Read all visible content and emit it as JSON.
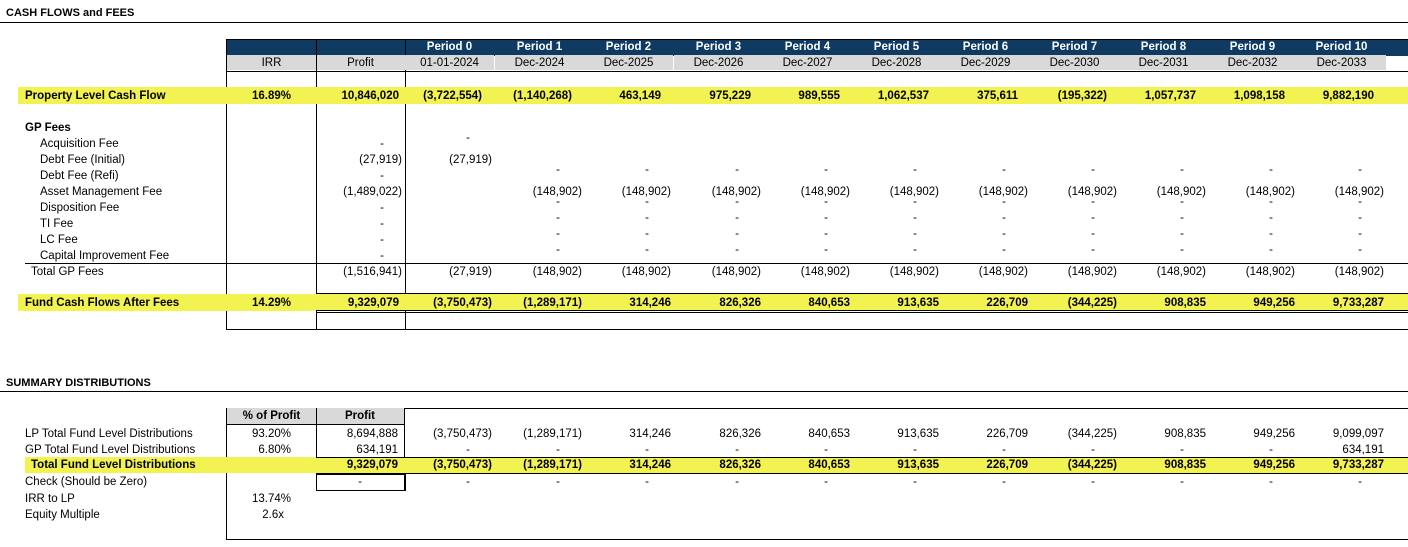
{
  "section1": {
    "title": "CASH FLOWS and FEES",
    "periods": [
      "Period 0",
      "Period 1",
      "Period 2",
      "Period 3",
      "Period 4",
      "Period 5",
      "Period 6",
      "Period 7",
      "Period 8",
      "Period 9",
      "Period 10"
    ],
    "dates": [
      "01-01-2024",
      "Dec-2024",
      "Dec-2025",
      "Dec-2026",
      "Dec-2027",
      "Dec-2028",
      "Dec-2029",
      "Dec-2030",
      "Dec-2031",
      "Dec-2032",
      "Dec-2033"
    ],
    "irr_header": "IRR",
    "profit_header": "Profit",
    "property_row": {
      "label": "Property Level Cash Flow",
      "irr": "16.89%",
      "profit": "10,846,020",
      "values": [
        "(3,722,554)",
        "(1,140,268)",
        "463,149",
        "975,229",
        "989,555",
        "1,062,537",
        "375,611",
        "(195,322)",
        "1,057,737",
        "1,098,158",
        "9,882,190"
      ]
    },
    "gp_fees_label": "GP Fees",
    "fees": [
      {
        "label": "Acquisition Fee",
        "profit": "-",
        "values": [
          "-",
          "",
          "",
          "",
          "",
          "",
          "",
          "",
          "",
          "",
          ""
        ]
      },
      {
        "label": "Debt Fee (Initial)",
        "profit": "(27,919)",
        "values": [
          "(27,919)",
          "",
          "",
          "",
          "",
          "",
          "",
          "",
          "",
          "",
          ""
        ]
      },
      {
        "label": "Debt Fee (Refi)",
        "profit": "-",
        "values": [
          "",
          "-",
          "-",
          "-",
          "-",
          "-",
          "-",
          "-",
          "-",
          "-",
          "-"
        ]
      },
      {
        "label": "Asset Management Fee",
        "profit": "(1,489,022)",
        "values": [
          "",
          "(148,902)",
          "(148,902)",
          "(148,902)",
          "(148,902)",
          "(148,902)",
          "(148,902)",
          "(148,902)",
          "(148,902)",
          "(148,902)",
          "(148,902)"
        ]
      },
      {
        "label": "Disposition Fee",
        "profit": "-",
        "values": [
          "",
          "-",
          "-",
          "-",
          "-",
          "-",
          "-",
          "-",
          "-",
          "-",
          "-"
        ]
      },
      {
        "label": "TI Fee",
        "profit": "-",
        "values": [
          "",
          "-",
          "-",
          "-",
          "-",
          "-",
          "-",
          "-",
          "-",
          "-",
          "-"
        ]
      },
      {
        "label": "LC Fee",
        "profit": "-",
        "values": [
          "",
          "-",
          "-",
          "-",
          "-",
          "-",
          "-",
          "-",
          "-",
          "-",
          "-"
        ]
      },
      {
        "label": "Capital Improvement Fee",
        "profit": "-",
        "values": [
          "",
          "-",
          "-",
          "-",
          "-",
          "-",
          "-",
          "-",
          "-",
          "-",
          "-"
        ]
      }
    ],
    "total_fees": {
      "label": "Total GP Fees",
      "profit": "(1,516,941)",
      "values": [
        "(27,919)",
        "(148,902)",
        "(148,902)",
        "(148,902)",
        "(148,902)",
        "(148,902)",
        "(148,902)",
        "(148,902)",
        "(148,902)",
        "(148,902)",
        "(148,902)"
      ]
    },
    "fund_row": {
      "label": "Fund Cash Flows After Fees",
      "irr": "14.29%",
      "profit": "9,329,079",
      "values": [
        "(3,750,473)",
        "(1,289,171)",
        "314,246",
        "826,326",
        "840,653",
        "913,635",
        "226,709",
        "(344,225)",
        "908,835",
        "949,256",
        "9,733,287"
      ]
    }
  },
  "section2": {
    "title": "SUMMARY DISTRIBUTIONS",
    "pct_header": "% of Profit",
    "profit_header": "Profit",
    "lp_row": {
      "label": "LP Total Fund Level Distributions",
      "pct": "93.20%",
      "profit": "8,694,888",
      "values": [
        "(3,750,473)",
        "(1,289,171)",
        "314,246",
        "826,326",
        "840,653",
        "913,635",
        "226,709",
        "(344,225)",
        "908,835",
        "949,256",
        "9,099,097"
      ]
    },
    "gp_row": {
      "label": "GP Total Fund Level Distributions",
      "pct": "6.80%",
      "profit": "634,191",
      "values": [
        "-",
        "-",
        "-",
        "-",
        "-",
        "-",
        "-",
        "-",
        "-",
        "-",
        "634,191"
      ]
    },
    "total_row": {
      "label": "Total Fund Level Distributions",
      "profit": "9,329,079",
      "values": [
        "(3,750,473)",
        "(1,289,171)",
        "314,246",
        "826,326",
        "840,653",
        "913,635",
        "226,709",
        "(344,225)",
        "908,835",
        "949,256",
        "9,733,287"
      ]
    },
    "check_row": {
      "label": "Check (Should be Zero)",
      "profit": "-",
      "values": [
        "-",
        "-",
        "-",
        "-",
        "-",
        "-",
        "-",
        "-",
        "-",
        "-",
        "-"
      ]
    },
    "irr_lp": {
      "label": "IRR to LP",
      "value": "13.74%"
    },
    "equity_multiple": {
      "label": "Equity Multiple",
      "value": "2.6x"
    }
  }
}
